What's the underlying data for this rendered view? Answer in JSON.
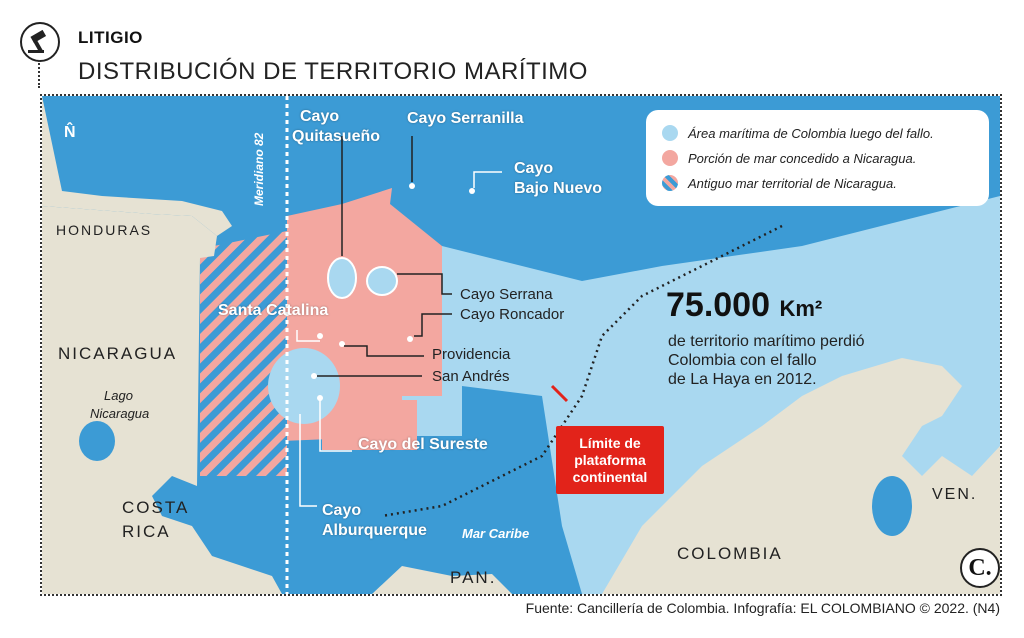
{
  "header": {
    "kicker": "LITIGIO",
    "title": "DISTRIBUCIÓN DE TERRITORIO MARÍTIMO"
  },
  "colors": {
    "colombia_sea": "#a9d8f0",
    "nicaragua_sea": "#f3a7a0",
    "open_sea": "#3c9bd5",
    "land": "#e6e2d3",
    "limit_box": "#e2231a"
  },
  "legend": {
    "items": [
      {
        "label": "Área marítima de Colombia luego del fallo.",
        "color": "#a9d8f0"
      },
      {
        "label": "Porción de mar concedido a Nicaragua.",
        "color": "#f3a7a0"
      },
      {
        "label": "Antiguo mar territorial de Nicaragua.",
        "color": "striped"
      }
    ]
  },
  "map": {
    "north": "N̂",
    "meridian": "Meridiano 82",
    "countries": {
      "honduras": "HONDURAS",
      "nicaragua": "NICARAGUA",
      "costa_rica_1": "COSTA",
      "costa_rica_2": "RICA",
      "panama": "PAN.",
      "colombia": "COLOMBIA",
      "venezuela": "VEN."
    },
    "lake": {
      "line1": "Lago",
      "line2": "Nicaragua"
    },
    "sea": "Mar Caribe",
    "cays": {
      "quitasueno_1": "Cayo",
      "quitasueno_2": "Quitasueño",
      "serranilla": "Cayo Serranilla",
      "bajo_nuevo_1": "Cayo",
      "bajo_nuevo_2": "Bajo Nuevo",
      "serrana": "Cayo Serrana",
      "roncador": "Cayo Roncador",
      "providencia": "Providencia",
      "san_andres": "San Andrés",
      "santa_catalina": "Santa Catalina",
      "sureste": "Cayo del Sureste",
      "alburquerque_1": "Cayo",
      "alburquerque_2": "Alburquerque"
    }
  },
  "stat": {
    "number": "75.000",
    "unit": "Km²",
    "line1": "de territorio marítimo perdió",
    "line2": "Colombia con el fallo",
    "line3": "de La Haya en 2012."
  },
  "limit": {
    "line1": "Límite de",
    "line2": "plataforma",
    "line3": "continental"
  },
  "logo": "C.",
  "footer": "Fuente: Cancillería de Colombia. Infografía: EL COLOMBIANO © 2022. (N4)"
}
